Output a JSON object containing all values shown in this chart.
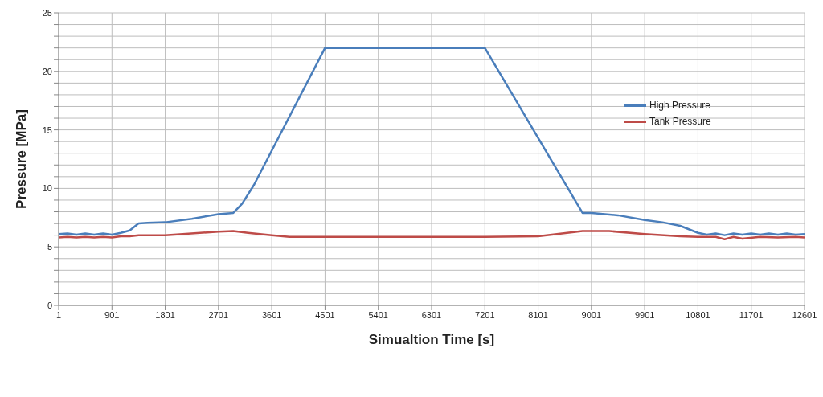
{
  "chart_data": {
    "type": "line",
    "xlabel": "Simualtion Time [s]",
    "ylabel": "Pressure [MPa]",
    "xlim": [
      1,
      12601
    ],
    "xticks": [
      1,
      901,
      1801,
      2701,
      3601,
      4501,
      5401,
      6301,
      7201,
      8101,
      9001,
      9901,
      10801,
      11701,
      12601
    ],
    "ylim": [
      0,
      25
    ],
    "yticks": [
      0,
      {
        "value": 1,
        "label": null
      },
      {
        "value": 2,
        "label": null
      },
      {
        "value": 3,
        "label": null
      },
      {
        "value": 4,
        "label": null
      },
      5,
      {
        "value": 6,
        "label": null
      },
      {
        "value": 7,
        "label": null
      },
      {
        "value": 8,
        "label": null
      },
      {
        "value": 9,
        "label": null
      },
      10,
      {
        "value": 11,
        "label": null
      },
      {
        "value": 12,
        "label": null
      },
      {
        "value": 13,
        "label": null
      },
      {
        "value": 14,
        "label": null
      },
      15,
      {
        "value": 16,
        "label": null
      },
      {
        "value": 17,
        "label": null
      },
      {
        "value": 18,
        "label": null
      },
      {
        "value": 19,
        "label": null
      },
      20,
      {
        "value": 21,
        "label": null
      },
      {
        "value": 22,
        "label": null
      },
      {
        "value": 23,
        "label": null
      },
      {
        "value": 24,
        "label": null
      },
      25
    ],
    "grid": true,
    "legend": "right",
    "marker": "none",
    "line_style": "solid",
    "series": [
      {
        "name": "High Pressure",
        "color": "#4a7ebb",
        "x": [
          1,
          151,
          301,
          451,
          601,
          751,
          901,
          1051,
          1201,
          1351,
          1501,
          1801,
          2251,
          2701,
          2951,
          3101,
          3301,
          4501,
          7201,
          8851,
          9001,
          9451,
          9901,
          10201,
          10501,
          10801,
          10951,
          11101,
          11251,
          11401,
          11551,
          11701,
          11851,
          12001,
          12151,
          12301,
          12451,
          12601
        ],
        "values": [
          6.1,
          6.15,
          6.05,
          6.15,
          6.05,
          6.15,
          6.05,
          6.2,
          6.4,
          7.0,
          7.05,
          7.1,
          7.4,
          7.8,
          7.9,
          8.7,
          10.3,
          22,
          22,
          7.9,
          7.9,
          7.7,
          7.3,
          7.1,
          6.8,
          6.2,
          6.05,
          6.15,
          6.0,
          6.15,
          6.05,
          6.15,
          6.05,
          6.15,
          6.05,
          6.15,
          6.05,
          6.1
        ]
      },
      {
        "name": "Tank Pressure",
        "color": "#be4b48",
        "x": [
          1,
          151,
          301,
          451,
          601,
          751,
          901,
          1051,
          1201,
          1351,
          1801,
          2701,
          2951,
          3201,
          3601,
          3901,
          7201,
          8101,
          8851,
          9301,
          9901,
          10501,
          10801,
          11101,
          11251,
          11401,
          11551,
          11851,
          12151,
          12451,
          12601
        ],
        "values": [
          5.8,
          5.85,
          5.8,
          5.85,
          5.8,
          5.85,
          5.8,
          5.9,
          5.9,
          6.0,
          6.0,
          6.3,
          6.35,
          6.2,
          6.0,
          5.85,
          5.85,
          5.9,
          6.35,
          6.35,
          6.1,
          5.9,
          5.85,
          5.85,
          5.65,
          5.85,
          5.7,
          5.85,
          5.8,
          5.85,
          5.8
        ]
      }
    ]
  }
}
